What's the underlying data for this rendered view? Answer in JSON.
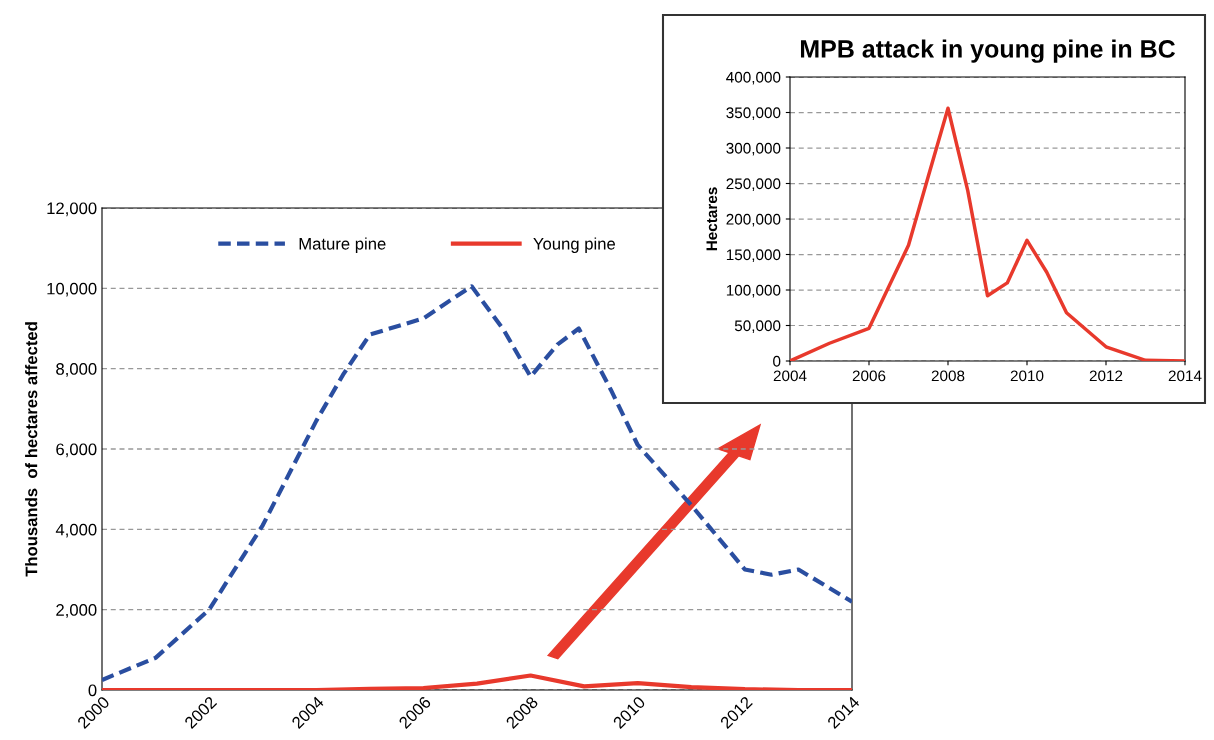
{
  "chart_data": [
    {
      "type": "line",
      "ylabel": "Thousands  of hectares affected",
      "x": [
        2000,
        2001,
        2002,
        2003,
        2004,
        2005,
        2006,
        2007,
        2008,
        2009,
        2010,
        2011,
        2012,
        2013,
        2014
      ],
      "series": [
        {
          "name": "Mature pine",
          "color": "#2a4ea0",
          "line_style": "dashed",
          "x": [
            2000,
            2001,
            2002,
            2003,
            2004,
            2004.5,
            2005,
            2006,
            2006.5,
            2006.9,
            2007.5,
            2008,
            2008.5,
            2008.9,
            2009.5,
            2010,
            2011,
            2012,
            2012.5,
            2013,
            2014
          ],
          "values": [
            250,
            800,
            2000,
            4100,
            6700,
            7850,
            8850,
            9250,
            9700,
            10050,
            8960,
            7800,
            8600,
            9000,
            7470,
            6100,
            4600,
            3000,
            2870,
            3000,
            2200
          ]
        },
        {
          "name": "Young pine",
          "color": "#e8392c",
          "line_style": "solid",
          "values": [
            0,
            0,
            0,
            0,
            0,
            30,
            50,
            160,
            360,
            90,
            170,
            70,
            20,
            0,
            0
          ]
        }
      ],
      "xlim": [
        2000,
        2014
      ],
      "xticks": [
        2000,
        2002,
        2004,
        2006,
        2008,
        2010,
        2012,
        2014
      ],
      "ylim": [
        0,
        12000
      ],
      "yticks": [
        0,
        {
          "value": 2000,
          "label": "2,000"
        },
        {
          "value": 4000,
          "label": "4,000"
        },
        {
          "value": 6000,
          "label": "6,000"
        },
        {
          "value": 8000,
          "label": "8,000"
        },
        {
          "value": 10000,
          "label": "10,000"
        },
        {
          "value": 12000,
          "label": "12,000"
        }
      ],
      "grid": "y",
      "legend": "top",
      "marker": "none"
    },
    {
      "type": "line",
      "title": "MPB attack in young pine in BC",
      "ylabel": "Hectares",
      "x": [
        2004,
        2005,
        2006,
        2007,
        2007.5,
        2008,
        2008.5,
        2009,
        2009.5,
        2010,
        2010.5,
        2011,
        2012,
        2013,
        2014
      ],
      "series": [
        {
          "color": "#e8392c",
          "line_style": "solid",
          "values": [
            0,
            25000,
            46000,
            163000,
            260000,
            356000,
            240000,
            92000,
            110000,
            170000,
            125000,
            68000,
            20000,
            1000,
            0
          ]
        }
      ],
      "xlim": [
        2004,
        2014
      ],
      "xticks": [
        2004,
        2006,
        2008,
        2010,
        2012,
        2014
      ],
      "ylim": [
        0,
        400000
      ],
      "yticks": [
        0,
        {
          "value": 50000,
          "label": "50,000"
        },
        {
          "value": 100000,
          "label": "100,000"
        },
        {
          "value": 150000,
          "label": "150,000"
        },
        {
          "value": 200000,
          "label": "200,000"
        },
        {
          "value": 250000,
          "label": "250,000"
        },
        {
          "value": 300000,
          "label": "300,000"
        },
        {
          "value": 350000,
          "label": "350,000"
        },
        {
          "value": 400000,
          "label": "400,000"
        }
      ],
      "grid": "y",
      "marker": "none"
    }
  ]
}
